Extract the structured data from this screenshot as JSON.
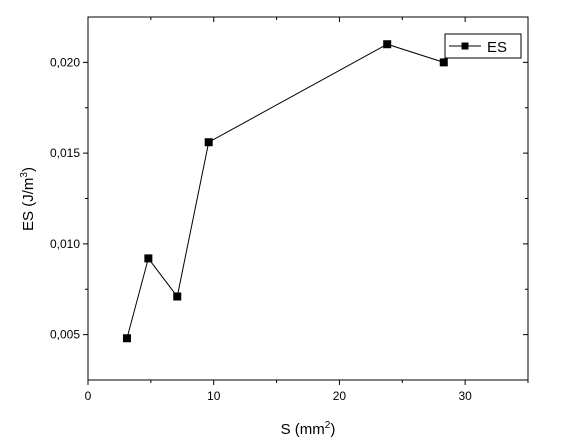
{
  "chart_data": {
    "type": "line",
    "xlabel": "S (mm",
    "xlabel_sup": "2",
    "xlabel_close": ")",
    "ylabel": "ES (J/m",
    "ylabel_sup": "3",
    "ylabel_close": ")",
    "xlim": [
      0,
      35
    ],
    "ylim": [
      0.0025,
      0.0225
    ],
    "xticks": [
      0,
      10,
      20,
      30
    ],
    "xtick_labels": [
      "0",
      "10",
      "20",
      "30"
    ],
    "yticks": [
      0.005,
      0.01,
      0.015,
      0.02
    ],
    "ytick_labels": [
      "0,005",
      "0,010",
      "0,015",
      "0,020"
    ],
    "grid": false,
    "legend_position": "top-right",
    "series": [
      {
        "name": "ES",
        "color": "#000000",
        "marker": "square",
        "x": [
          3.1,
          4.8,
          7.1,
          9.6,
          23.8,
          28.3
        ],
        "y": [
          0.0048,
          0.0092,
          0.0071,
          0.0156,
          0.021,
          0.02
        ]
      }
    ]
  }
}
